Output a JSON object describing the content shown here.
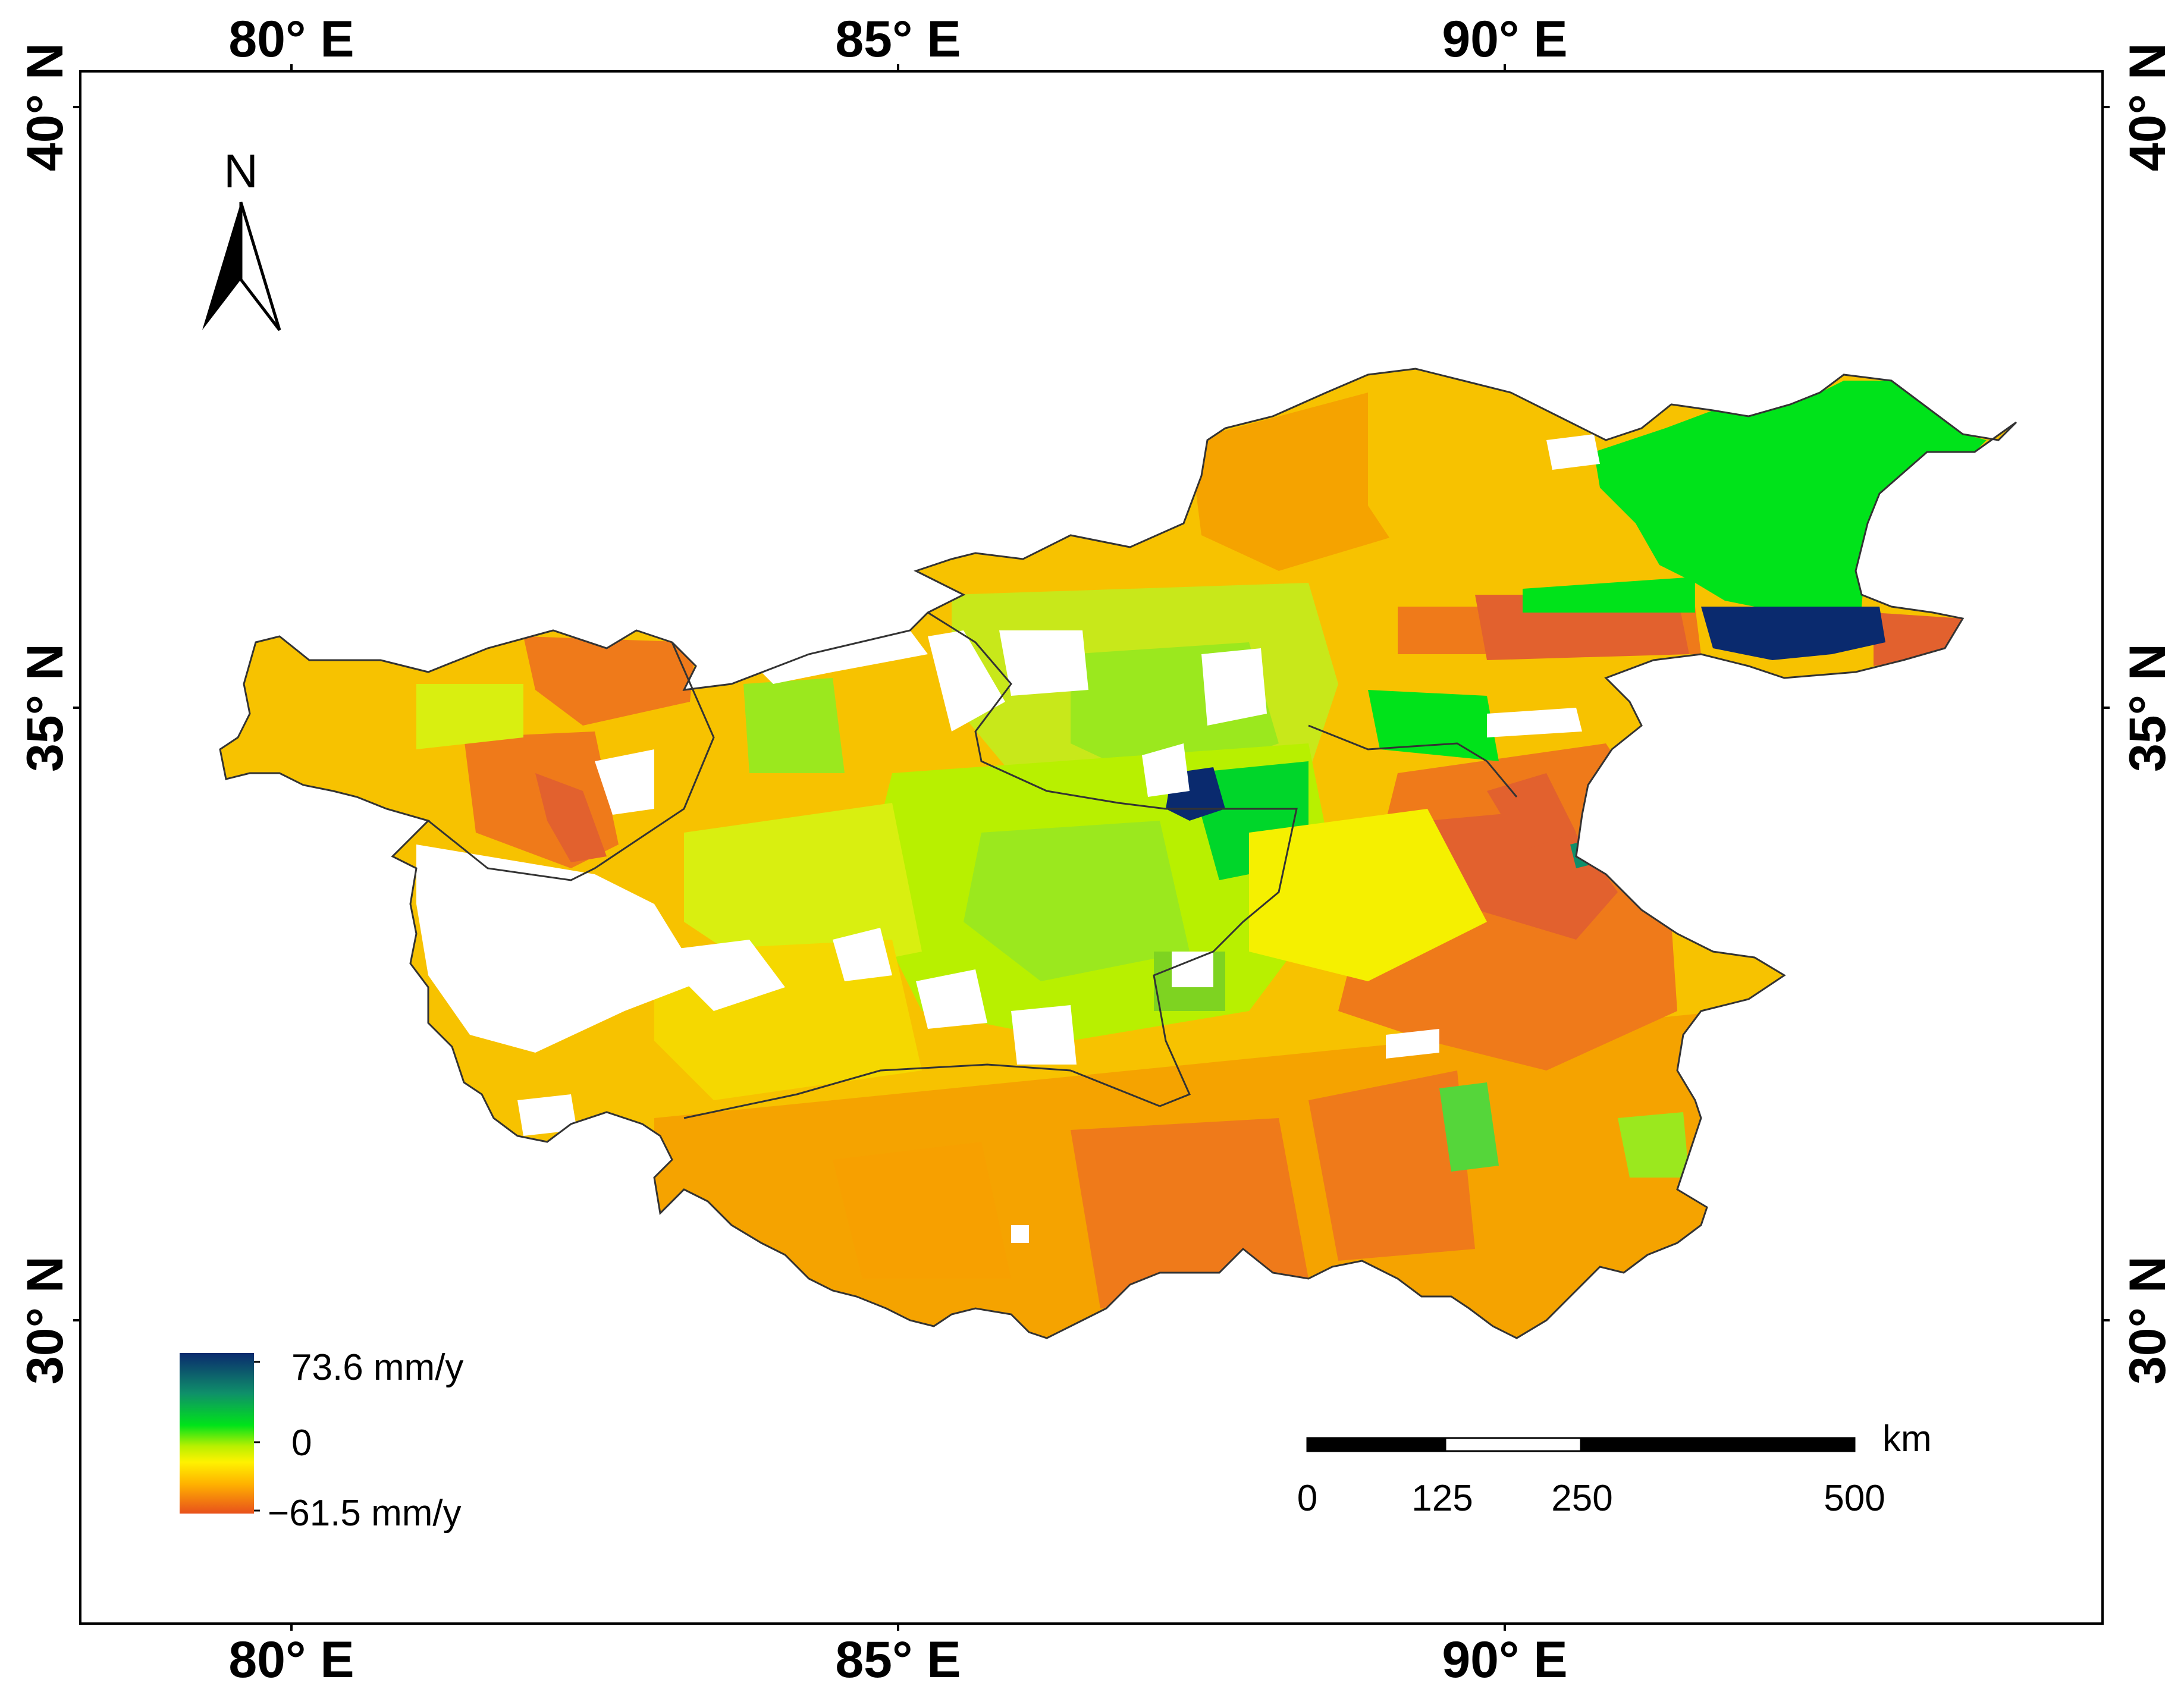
{
  "map": {
    "lon_labels": [
      "80° E",
      "85° E",
      "90° E"
    ],
    "lat_labels": [
      "40° N",
      "35° N",
      "30° N"
    ]
  },
  "north_arrow": {
    "label": "N",
    "icon": "north-arrow-icon"
  },
  "legend": {
    "max_label": "73.6 mm/y",
    "mid_label": "0",
    "min_label": "−61.5 mm/y",
    "colors": [
      "#0a2a6e",
      "#0f8f6a",
      "#00e31a",
      "#b8f000",
      "#fff200",
      "#ffb000",
      "#e8501c"
    ]
  },
  "scale_bar": {
    "unit": "km",
    "ticks": [
      "0",
      "125",
      "250",
      "500"
    ]
  },
  "colors": {
    "deep_blue": "#0a2a6e",
    "green": "#00e31a",
    "light_green": "#9be81e",
    "yellow": "#f5f000",
    "yellow_orange": "#f7c200",
    "orange": "#f5a300",
    "dark_orange": "#ef7a1a",
    "red_orange": "#e2612e"
  }
}
